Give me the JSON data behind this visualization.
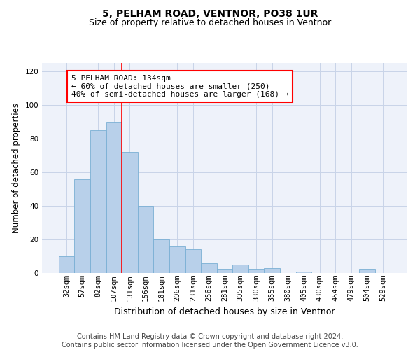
{
  "title": "5, PELHAM ROAD, VENTNOR, PO38 1UR",
  "subtitle": "Size of property relative to detached houses in Ventnor",
  "xlabel": "Distribution of detached houses by size in Ventnor",
  "ylabel": "Number of detached properties",
  "categories": [
    "32sqm",
    "57sqm",
    "82sqm",
    "107sqm",
    "131sqm",
    "156sqm",
    "181sqm",
    "206sqm",
    "231sqm",
    "256sqm",
    "281sqm",
    "305sqm",
    "330sqm",
    "355sqm",
    "380sqm",
    "405sqm",
    "430sqm",
    "454sqm",
    "479sqm",
    "504sqm",
    "529sqm"
  ],
  "values": [
    10,
    56,
    85,
    90,
    72,
    40,
    20,
    16,
    14,
    6,
    2,
    5,
    2,
    3,
    0,
    1,
    0,
    0,
    0,
    2,
    0
  ],
  "bar_color": "#b8d0ea",
  "bar_edge_color": "#7aafd4",
  "ylim": [
    0,
    125
  ],
  "yticks": [
    0,
    20,
    40,
    60,
    80,
    100,
    120
  ],
  "grid_color": "#c8d4e8",
  "background_color": "#eef2fa",
  "vline_x_index": 3.5,
  "vline_color": "red",
  "annotation_line1": "5 PELHAM ROAD: 134sqm",
  "annotation_line2": "← 60% of detached houses are smaller (250)",
  "annotation_line3": "40% of semi-detached houses are larger (168) →",
  "footer_line1": "Contains HM Land Registry data © Crown copyright and database right 2024.",
  "footer_line2": "Contains public sector information licensed under the Open Government Licence v3.0.",
  "title_fontsize": 10,
  "subtitle_fontsize": 9,
  "xlabel_fontsize": 9,
  "ylabel_fontsize": 8.5,
  "tick_fontsize": 7.5,
  "annotation_fontsize": 8,
  "footer_fontsize": 7
}
